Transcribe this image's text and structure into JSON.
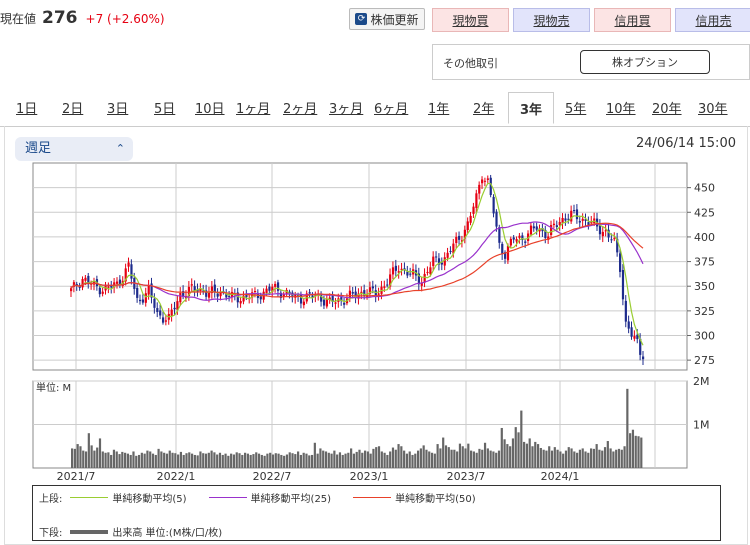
{
  "price": {
    "label": "現在値",
    "value": "276",
    "change": "+7 (+2.60%)"
  },
  "toolbar": {
    "refresh_label": "株価更新",
    "actual_buy": "現物買",
    "actual_sell": "現物売",
    "margin_buy": "信用買",
    "margin_sell": "信用売"
  },
  "other": {
    "label": "その他取引",
    "option_button": "株オプション"
  },
  "period_tabs": [
    "1日",
    "2日",
    "3日",
    "5日",
    "10日",
    "1ヶ月",
    "2ヶ月",
    "3ヶ月",
    "6ヶ月",
    "1年",
    "2年",
    "3年",
    "5年",
    "10年",
    "20年",
    "30年"
  ],
  "active_tab": "3年",
  "interval_select": {
    "value": "週足"
  },
  "timestamp": "24/06/14 15:00",
  "colors": {
    "up": "#e60012",
    "down": "#1d2b8c",
    "ma5": "#9acd32",
    "ma25": "#9932cc",
    "ma50": "#e8412a",
    "volume": "#666666"
  },
  "chart_data": {
    "type": "candlestick",
    "price_axis": {
      "ticks": [
        450,
        425,
        400,
        375,
        350,
        325,
        300,
        275
      ],
      "range": [
        265,
        475
      ]
    },
    "volume_axis": {
      "label": "単位: M",
      "ticks": [
        "2M",
        "1M"
      ],
      "range": [
        0,
        2
      ]
    },
    "x_ticks": [
      "2021/7",
      "2022/1",
      "2022/7",
      "2023/1",
      "2023/7",
      "2024/1"
    ],
    "close_path": [
      [
        0,
        345
      ],
      [
        4,
        358
      ],
      [
        8,
        350
      ],
      [
        12,
        347
      ],
      [
        16,
        352
      ],
      [
        20,
        370
      ],
      [
        23,
        335
      ],
      [
        27,
        345
      ],
      [
        30,
        322
      ],
      [
        34,
        316
      ],
      [
        38,
        342
      ],
      [
        44,
        348
      ],
      [
        48,
        342
      ],
      [
        52,
        345
      ],
      [
        56,
        338
      ],
      [
        64,
        340
      ],
      [
        70,
        348
      ],
      [
        74,
        344
      ],
      [
        78,
        338
      ],
      [
        86,
        340
      ],
      [
        90,
        333
      ],
      [
        98,
        340
      ],
      [
        102,
        345
      ],
      [
        106,
        342
      ],
      [
        110,
        355
      ],
      [
        114,
        370
      ],
      [
        118,
        362
      ],
      [
        122,
        356
      ],
      [
        126,
        375
      ],
      [
        130,
        378
      ],
      [
        134,
        395
      ],
      [
        138,
        412
      ],
      [
        141,
        440
      ],
      [
        143,
        465
      ],
      [
        145,
        455
      ],
      [
        147,
        425
      ],
      [
        149,
        392
      ],
      [
        151,
        383
      ],
      [
        154,
        398
      ],
      [
        158,
        400
      ],
      [
        162,
        410
      ],
      [
        166,
        402
      ],
      [
        170,
        417
      ],
      [
        174,
        422
      ],
      [
        178,
        418
      ],
      [
        182,
        412
      ],
      [
        186,
        405
      ],
      [
        189,
        393
      ],
      [
        191,
        370
      ],
      [
        193,
        312
      ],
      [
        195,
        300
      ],
      [
        197,
        292
      ],
      [
        199,
        276
      ]
    ],
    "volume_bars": [
      0.45,
      0.44,
      0.55,
      0.5,
      0.4,
      0.38,
      0.8,
      0.52,
      0.4,
      0.47,
      0.68,
      0.38,
      0.35,
      0.36,
      0.3,
      0.42,
      0.38,
      0.32,
      0.37,
      0.35,
      0.33,
      0.3,
      0.38,
      0.28,
      0.3,
      0.35,
      0.33,
      0.4,
      0.38,
      0.33,
      0.3,
      0.44,
      0.38,
      0.35,
      0.33,
      0.4,
      0.35,
      0.34,
      0.31,
      0.37,
      0.3,
      0.34,
      0.36,
      0.33,
      0.3,
      0.29,
      0.38,
      0.34,
      0.33,
      0.35,
      0.4,
      0.36,
      0.31,
      0.35,
      0.3,
      0.33,
      0.28,
      0.33,
      0.31,
      0.36,
      0.34,
      0.3,
      0.35,
      0.33,
      0.3,
      0.32,
      0.36,
      0.33,
      0.3,
      0.28,
      0.33,
      0.35,
      0.31,
      0.34,
      0.33,
      0.3,
      0.28,
      0.31,
      0.36,
      0.34,
      0.32,
      0.38,
      0.3,
      0.35,
      0.33,
      0.29,
      0.3,
      0.58,
      0.33,
      0.45,
      0.4,
      0.38,
      0.35,
      0.33,
      0.4,
      0.31,
      0.36,
      0.3,
      0.33,
      0.35,
      0.45,
      0.33,
      0.37,
      0.42,
      0.35,
      0.4,
      0.38,
      0.33,
      0.44,
      0.48,
      0.5,
      0.38,
      0.35,
      0.3,
      0.38,
      0.47,
      0.42,
      0.55,
      0.5,
      0.4,
      0.33,
      0.38,
      0.3,
      0.33,
      0.4,
      0.45,
      0.52,
      0.42,
      0.38,
      0.35,
      0.33,
      0.55,
      0.45,
      0.7,
      0.52,
      0.48,
      0.42,
      0.42,
      0.38,
      0.56,
      0.5,
      0.45,
      0.56,
      0.4,
      0.38,
      0.35,
      0.44,
      0.42,
      0.58,
      0.45,
      0.4,
      0.38,
      0.35,
      0.4,
      0.92,
      0.66,
      0.55,
      0.5,
      0.68,
      0.94,
      0.82,
      1.32,
      0.6,
      0.56,
      0.68,
      0.5,
      0.6,
      0.55,
      0.46,
      0.42,
      0.4,
      0.5,
      0.4,
      0.48,
      0.42,
      0.38,
      0.33,
      0.4,
      0.48,
      0.45,
      0.38,
      0.35,
      0.42,
      0.45,
      0.38,
      0.35,
      0.45,
      0.44,
      0.55,
      0.42,
      0.4,
      0.48,
      0.62,
      0.45,
      0.38,
      0.42,
      0.44,
      0.42,
      0.5,
      1.82,
      0.8,
      0.88,
      0.74,
      0.73,
      0.7
    ]
  },
  "legend": {
    "upper_label": "上段:",
    "ma5": "単純移動平均(5)",
    "ma25": "単純移動平均(25)",
    "ma50": "単純移動平均(50)",
    "lower_label": "下段:",
    "volume": "出来高 単位:(M株/口/枚)"
  }
}
